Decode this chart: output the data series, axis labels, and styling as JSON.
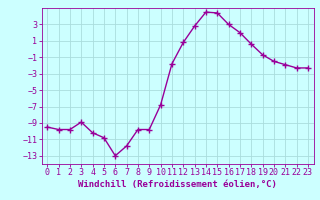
{
  "x": [
    0,
    1,
    2,
    3,
    4,
    5,
    6,
    7,
    8,
    9,
    10,
    11,
    12,
    13,
    14,
    15,
    16,
    17,
    18,
    19,
    20,
    21,
    22,
    23
  ],
  "y": [
    -9.5,
    -9.8,
    -9.8,
    -8.9,
    -10.2,
    -10.8,
    -13.0,
    -11.8,
    -9.8,
    -9.8,
    -6.8,
    -1.8,
    0.8,
    2.8,
    4.5,
    4.4,
    3.0,
    2.0,
    0.6,
    -0.7,
    -1.5,
    -1.9,
    -2.3,
    -2.3
  ],
  "line_color": "#990099",
  "marker": "+",
  "markersize": 4,
  "linewidth": 1.0,
  "background_color": "#ccffff",
  "grid_color": "#aadddd",
  "xlabel": "Windchill (Refroidissement éolien,°C)",
  "xlabel_fontsize": 6.5,
  "tick_color": "#990099",
  "tick_fontsize": 6,
  "ylim": [
    -14,
    5
  ],
  "yticks": [
    3,
    1,
    -1,
    -3,
    -5,
    -7,
    -9,
    -11,
    -13
  ],
  "xlim": [
    -0.5,
    23.5
  ]
}
